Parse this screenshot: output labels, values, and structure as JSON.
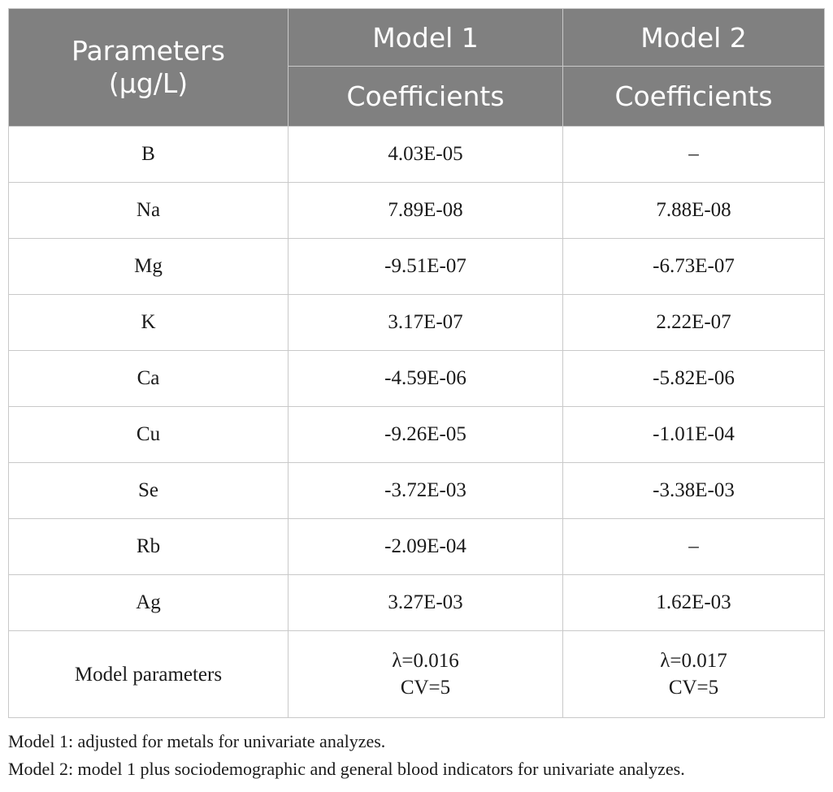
{
  "header": {
    "param_line1": "Parameters",
    "param_line2": "(μg/L)",
    "model1": "Model 1",
    "model2": "Model 2",
    "coef1": "Coefficients",
    "coef2": "Coefficients"
  },
  "rows": [
    {
      "param": "B",
      "m1": "4.03E-05",
      "m2": "–"
    },
    {
      "param": "Na",
      "m1": "7.89E-08",
      "m2": "7.88E-08"
    },
    {
      "param": "Mg",
      "m1": "-9.51E-07",
      "m2": "-6.73E-07"
    },
    {
      "param": "K",
      "m1": "3.17E-07",
      "m2": "2.22E-07"
    },
    {
      "param": "Ca",
      "m1": "-4.59E-06",
      "m2": "-5.82E-06"
    },
    {
      "param": "Cu",
      "m1": "-9.26E-05",
      "m2": "-1.01E-04"
    },
    {
      "param": "Se",
      "m1": "-3.72E-03",
      "m2": "-3.38E-03"
    },
    {
      "param": "Rb",
      "m1": "-2.09E-04",
      "m2": "–"
    },
    {
      "param": "Ag",
      "m1": "3.27E-03",
      "m2": "1.62E-03"
    }
  ],
  "model_params": {
    "label": "Model parameters",
    "m1_lambda": "λ=0.016",
    "m1_cv": "CV=5",
    "m2_lambda": "λ=0.017",
    "m2_cv": "CV=5"
  },
  "notes": {
    "note1": "Model 1: adjusted for metals for univariate analyzes.",
    "note2": "Model 2: model 1 plus sociodemographic and general blood indicators for univariate analyzes."
  }
}
